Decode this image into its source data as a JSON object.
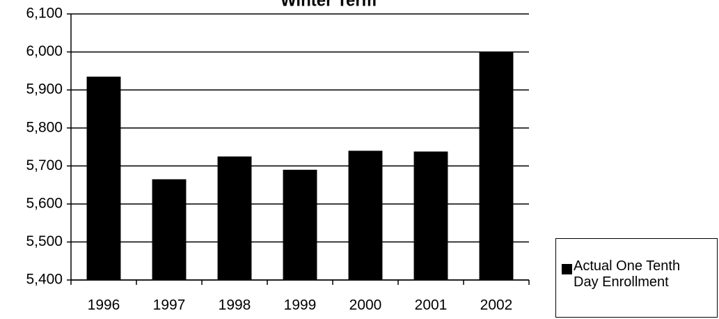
{
  "chart_data": {
    "type": "bar",
    "title": "Winter Term",
    "categories": [
      "1996",
      "1997",
      "1998",
      "1999",
      "2000",
      "2001",
      "2002"
    ],
    "series": [
      {
        "name": "Actual One Tenth Day Enrollment",
        "color": "#000000",
        "values": [
          5935,
          5665,
          5725,
          5690,
          5740,
          5738,
          6000
        ]
      }
    ],
    "ylim": [
      5400,
      6100
    ],
    "yticks": [
      {
        "value": 5400,
        "label": "5,400"
      },
      {
        "value": 5500,
        "label": "5,500"
      },
      {
        "value": 5600,
        "label": "5,600"
      },
      {
        "value": 5700,
        "label": "5,700"
      },
      {
        "value": 5800,
        "label": "5,800"
      },
      {
        "value": 5900,
        "label": "5,900"
      },
      {
        "value": 6000,
        "label": "6,000"
      },
      {
        "value": 6100,
        "label": "6,100"
      }
    ],
    "grid": true
  }
}
